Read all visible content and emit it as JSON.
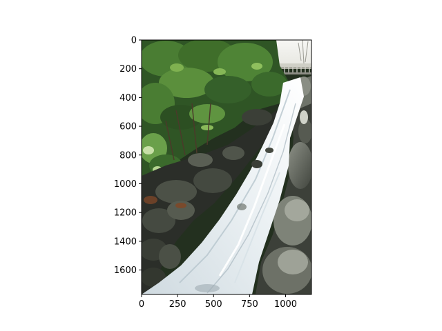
{
  "image": {
    "subject": "waterfall",
    "colors": {
      "foliage_dark": "#1f3a1a",
      "foliage_mid": "#3f6e2a",
      "foliage_light": "#7eaa4a",
      "rock_dark": "#2c2f2a",
      "rock_mid": "#4d5148",
      "rock_light": "#8b8f86",
      "water_white": "#f4f7f8",
      "water_blue": "#c9d6de",
      "sky": "#f3f3f0",
      "soil": "#5a3b26"
    }
  },
  "axes": {
    "x": {
      "range": [
        0,
        1180
      ],
      "ticks": [
        {
          "value": 0,
          "label": "0"
        },
        {
          "value": 250,
          "label": "250"
        },
        {
          "value": 500,
          "label": "500"
        },
        {
          "value": 750,
          "label": "750"
        },
        {
          "value": 1000,
          "label": "1000"
        }
      ]
    },
    "y": {
      "range": [
        0,
        1770
      ],
      "inverted": true,
      "ticks": [
        {
          "value": 0,
          "label": "0"
        },
        {
          "value": 200,
          "label": "200"
        },
        {
          "value": 400,
          "label": "400"
        },
        {
          "value": 600,
          "label": "600"
        },
        {
          "value": 800,
          "label": "800"
        },
        {
          "value": 1000,
          "label": "1000"
        },
        {
          "value": 1200,
          "label": "1200"
        },
        {
          "value": 1400,
          "label": "1400"
        },
        {
          "value": 1600,
          "label": "1600"
        }
      ]
    }
  }
}
